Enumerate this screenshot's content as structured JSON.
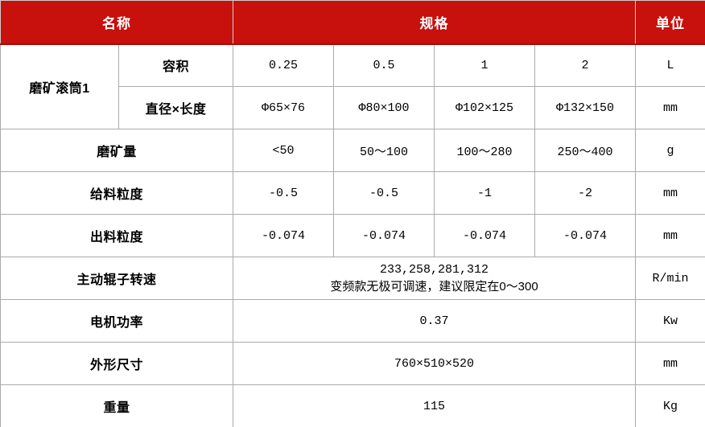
{
  "colors": {
    "header_bg": "#c8100d",
    "header_text": "#ffffff",
    "border": "#ababab",
    "body_text": "#000000"
  },
  "table": {
    "header": {
      "name": "名称",
      "spec": "规格",
      "unit": "单位"
    },
    "rows": {
      "drum": {
        "label": "磨矿滚筒1",
        "volume": {
          "label": "容积",
          "values": [
            "0.25",
            "0.5",
            "1",
            "2"
          ],
          "unit": "L"
        },
        "size": {
          "label": "直径×长度",
          "values": [
            "Φ65×76",
            "Φ80×100",
            "Φ102×125",
            "Φ132×150"
          ],
          "unit": "mm"
        }
      },
      "grind_amount": {
        "label": "磨矿量",
        "values": [
          "<50",
          "50～100",
          "100～280",
          "250～400"
        ],
        "unit": "g"
      },
      "feed_size": {
        "label": "给料粒度",
        "values": [
          "-0.5",
          "-0.5",
          "-1",
          "-2"
        ],
        "unit": "mm"
      },
      "discharge_size": {
        "label": "出料粒度",
        "values": [
          "-0.074",
          "-0.074",
          "-0.074",
          "-0.074"
        ],
        "unit": "mm"
      },
      "roller_speed": {
        "label": "主动辊子转速",
        "value_line1": "233,258,281,312",
        "value_line2": "变频款无极可调速，建议限定在0～300",
        "unit": "R/min"
      },
      "motor_power": {
        "label": "电机功率",
        "value": "0.37",
        "unit": "Kw"
      },
      "dimensions": {
        "label": "外形尺寸",
        "value": "760×510×520",
        "unit": "mm"
      },
      "weight": {
        "label": "重量",
        "value": "115",
        "unit": "Kg"
      }
    }
  }
}
